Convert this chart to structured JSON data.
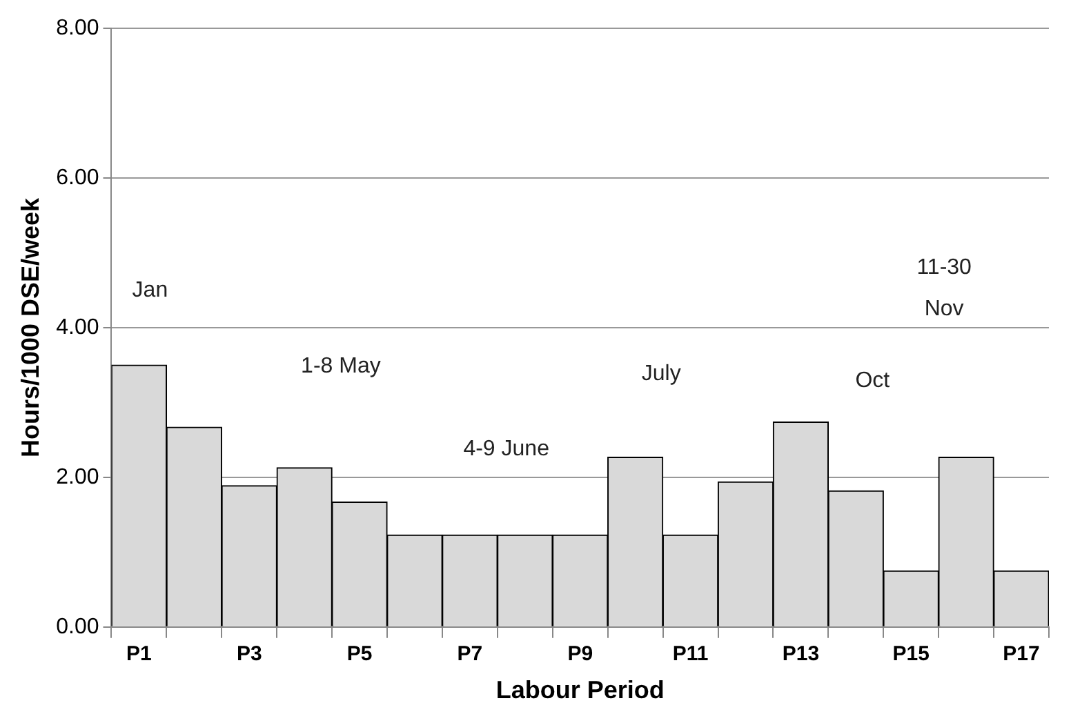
{
  "chart_data": {
    "type": "bar",
    "xlabel": "Labour Period",
    "ylabel": "Hours/1000 DSE/week",
    "categories": [
      "P1",
      null,
      "P3",
      null,
      "P5",
      null,
      "P7",
      null,
      "P9",
      null,
      "P11",
      null,
      "P13",
      null,
      "P15",
      null,
      "P17"
    ],
    "values": [
      3.5,
      2.67,
      1.89,
      2.13,
      1.67,
      1.23,
      1.23,
      1.23,
      1.23,
      2.27,
      1.23,
      1.94,
      2.74,
      1.82,
      0.75,
      2.27,
      0.75
    ],
    "color": "#d9d9d9",
    "ylim": [
      0,
      8
    ],
    "yticks": [
      {
        "value": 0,
        "label": "0.00"
      },
      {
        "value": 2,
        "label": "2.00"
      },
      {
        "value": 4,
        "label": "4.00"
      },
      {
        "value": 6,
        "label": "6.00"
      },
      {
        "value": 8,
        "label": "8.00"
      }
    ],
    "grid": "y",
    "legend": false,
    "annotations": [
      "Jan",
      "1-8 May",
      "4-9 June",
      "July",
      "Oct",
      "11-30\nNov"
    ]
  }
}
